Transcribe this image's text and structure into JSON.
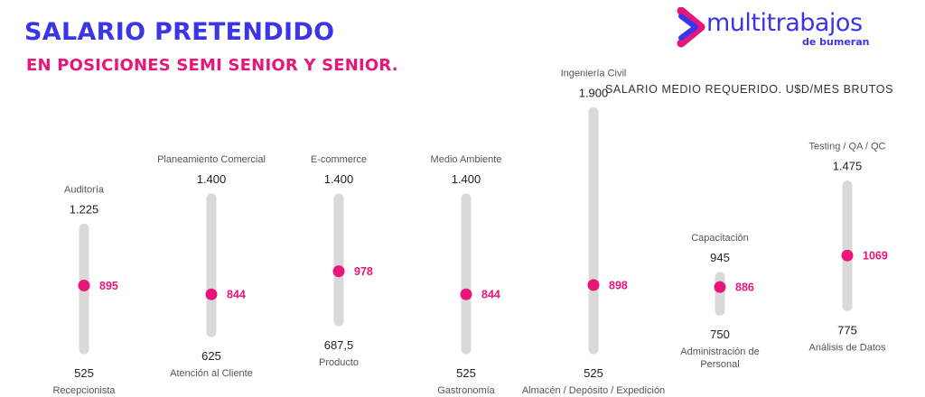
{
  "header": {
    "title": "SALARIO PRETENDIDO",
    "subtitle": "EN POSICIONES SEMI SENIOR Y SENIOR."
  },
  "logo": {
    "word": "multitrabajos",
    "sub": "de bumeran"
  },
  "colors": {
    "title": "#3a35e6",
    "accent": "#e8157a",
    "bar": "#d9d9d9"
  },
  "chart_data": {
    "type": "range",
    "title": "SALARIO MEDIO REQUERIDO. U$D/MES BRUTOS",
    "categories": [
      {
        "max_label": "Auditoría",
        "max": 1225,
        "max_text": "1.225",
        "min": 525,
        "min_text": "525",
        "min_label": "Recepcionista",
        "mid": 895,
        "mid_text": "895"
      },
      {
        "max_label": "Planeamiento Comercial",
        "max": 1400,
        "max_text": "1.400",
        "min": 625,
        "min_text": "625",
        "min_label": "Atención al Cliente",
        "mid": 844,
        "mid_text": "844"
      },
      {
        "max_label": "E-commerce",
        "max": 1400,
        "max_text": "1.400",
        "min": 687.5,
        "min_text": "687,5",
        "min_label": "Producto",
        "mid": 978,
        "mid_text": "978"
      },
      {
        "max_label": "Medio Ambiente",
        "max": 1400,
        "max_text": "1.400",
        "min": 525,
        "min_text": "525",
        "min_label": "Gastronomía",
        "mid": 844,
        "mid_text": "844"
      },
      {
        "max_label": "Ingeniería Civil",
        "max": 1900,
        "max_text": "1.900",
        "min": 525,
        "min_text": "525",
        "min_label": "Almacén / Depósito / Expedición",
        "mid": 898,
        "mid_text": "898"
      },
      {
        "max_label": "Capacitación",
        "max": 945,
        "max_text": "945",
        "min": 750,
        "min_text": "750",
        "min_label": "Administración de Personal",
        "mid": 886,
        "mid_text": "886"
      },
      {
        "max_label": "Testing / QA / QC",
        "max": 1475,
        "max_text": "1.475",
        "min": 775,
        "min_text": "775",
        "min_label": "Análisis de Datos",
        "mid": 1069,
        "mid_text": "1069"
      }
    ]
  }
}
